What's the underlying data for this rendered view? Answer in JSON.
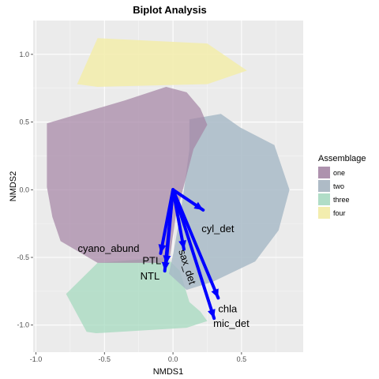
{
  "chart_data": {
    "type": "scatter",
    "title": "Biplot Analysis",
    "xlabel": "NMDS1",
    "ylabel": "NMDS2",
    "xlim": [
      -1.02,
      0.95
    ],
    "ylim": [
      -1.2,
      1.25
    ],
    "x_ticks": [
      -1.0,
      -0.5,
      0.0,
      0.5
    ],
    "x_tick_labels": [
      "-1.0",
      "-0.5",
      "0.0",
      "0.5"
    ],
    "y_ticks": [
      -1.0,
      -0.5,
      0.0,
      0.5,
      1.0
    ],
    "y_tick_labels": [
      "-1.0",
      "-0.5",
      "0.0",
      "0.5",
      "1.0"
    ],
    "grid": true,
    "background": "#ebebeb",
    "legend": {
      "title": "Assemblage",
      "placement": "right",
      "entries": [
        {
          "name": "one",
          "color": "#ae92ae"
        },
        {
          "name": "two",
          "color": "#aebbc6"
        },
        {
          "name": "three",
          "color": "#b0ddc7"
        },
        {
          "name": "four",
          "color": "#f3edae"
        }
      ]
    },
    "hulls": [
      {
        "group": "four",
        "color": "#f3edae",
        "opacity": 0.9,
        "points": [
          [
            -0.55,
            1.12
          ],
          [
            0.25,
            1.08
          ],
          [
            0.54,
            0.88
          ],
          [
            0.25,
            0.78
          ],
          [
            -0.55,
            0.76
          ],
          [
            -0.7,
            0.78
          ]
        ]
      },
      {
        "group": "three",
        "color": "#a6d9bf",
        "opacity": 0.75,
        "points": [
          [
            -0.55,
            -0.54
          ],
          [
            -0.05,
            -0.5
          ],
          [
            0.05,
            -0.6
          ],
          [
            0.12,
            -0.83
          ],
          [
            0.2,
            -0.9
          ],
          [
            0.25,
            -0.97
          ],
          [
            0.1,
            -1.02
          ],
          [
            -0.56,
            -1.06
          ],
          [
            -0.63,
            -1.05
          ],
          [
            -0.78,
            -0.77
          ]
        ]
      },
      {
        "group": "two",
        "color": "#a6b8c6",
        "opacity": 0.82,
        "points": [
          [
            0.12,
            0.52
          ],
          [
            0.35,
            0.56
          ],
          [
            0.49,
            0.46
          ],
          [
            0.74,
            0.33
          ],
          [
            0.85,
            0.0
          ],
          [
            0.77,
            -0.3
          ],
          [
            0.6,
            -0.53
          ],
          [
            0.29,
            -0.68
          ],
          [
            0.1,
            -0.74
          ],
          [
            -0.03,
            -0.62
          ],
          [
            0.0,
            -0.48
          ],
          [
            0.05,
            -0.2
          ],
          [
            0.08,
            0.0
          ],
          [
            0.12,
            0.3
          ]
        ]
      },
      {
        "group": "one",
        "color": "#a585a5",
        "opacity": 0.72,
        "points": [
          [
            -0.92,
            0.49
          ],
          [
            -0.35,
            0.66
          ],
          [
            -0.05,
            0.76
          ],
          [
            0.1,
            0.72
          ],
          [
            0.2,
            0.6
          ],
          [
            0.25,
            0.48
          ],
          [
            0.15,
            0.3
          ],
          [
            0.02,
            -0.2
          ],
          [
            -0.02,
            -0.48
          ],
          [
            -0.07,
            -0.54
          ],
          [
            -0.55,
            -0.54
          ],
          [
            -0.82,
            -0.38
          ],
          [
            -0.88,
            -0.2
          ],
          [
            -0.92,
            0.02
          ]
        ]
      }
    ],
    "arrow_origin": [
      0.0,
      0.0
    ],
    "arrow_color": "#0000ff",
    "arrows": [
      {
        "label": "cyl_det",
        "x": 0.22,
        "y": -0.15
      },
      {
        "label": "cyano_abund",
        "x": -0.09,
        "y": -0.47
      },
      {
        "label": "PTL",
        "x": -0.05,
        "y": -0.55
      },
      {
        "label": "NTL",
        "x": -0.06,
        "y": -0.6
      },
      {
        "label": "sax_det",
        "x": 0.08,
        "y": -0.44
      },
      {
        "label": "chla",
        "x": 0.33,
        "y": -0.8
      },
      {
        "label": "mic_det",
        "x": 0.3,
        "y": -0.95
      }
    ]
  }
}
